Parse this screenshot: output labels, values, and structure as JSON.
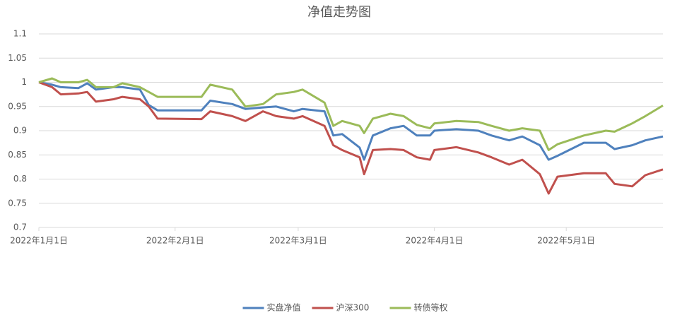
{
  "chart_data": {
    "type": "line",
    "title": "净值走势图",
    "x": [
      "2022-01-01",
      "2022-01-04",
      "2022-01-06",
      "2022-01-10",
      "2022-01-12",
      "2022-01-14",
      "2022-01-18",
      "2022-01-20",
      "2022-01-24",
      "2022-01-26",
      "2022-01-28",
      "2022-02-07",
      "2022-02-09",
      "2022-02-14",
      "2022-02-17",
      "2022-02-21",
      "2022-02-24",
      "2022-02-28",
      "2022-03-02",
      "2022-03-07",
      "2022-03-09",
      "2022-03-11",
      "2022-03-15",
      "2022-03-16",
      "2022-03-18",
      "2022-03-22",
      "2022-03-25",
      "2022-03-28",
      "2022-03-31",
      "2022-04-01",
      "2022-04-06",
      "2022-04-11",
      "2022-04-14",
      "2022-04-18",
      "2022-04-21",
      "2022-04-25",
      "2022-04-27",
      "2022-04-29",
      "2022-05-05",
      "2022-05-10",
      "2022-05-12",
      "2022-05-16",
      "2022-05-19",
      "2022-05-23"
    ],
    "series": [
      {
        "name": "实盘净值",
        "color": "#4f81bd",
        "values": [
          1,
          0.995,
          0.99,
          0.988,
          0.998,
          0.985,
          0.99,
          0.99,
          0.985,
          0.953,
          0.942,
          0.942,
          0.962,
          0.955,
          0.945,
          0.948,
          0.95,
          0.94,
          0.945,
          0.94,
          0.89,
          0.893,
          0.865,
          0.84,
          0.89,
          0.905,
          0.91,
          0.89,
          0.89,
          0.9,
          0.903,
          0.9,
          0.89,
          0.88,
          0.888,
          0.87,
          0.84,
          0.848,
          0.875,
          0.875,
          0.862,
          0.87,
          0.88,
          0.888
        ]
      },
      {
        "name": "沪深300",
        "color": "#c0504d",
        "values": [
          1,
          0.99,
          0.975,
          0.977,
          0.98,
          0.96,
          0.965,
          0.97,
          0.965,
          0.95,
          0.925,
          0.924,
          0.94,
          0.93,
          0.92,
          0.94,
          0.93,
          0.925,
          0.93,
          0.91,
          0.87,
          0.86,
          0.845,
          0.81,
          0.86,
          0.862,
          0.86,
          0.845,
          0.84,
          0.86,
          0.866,
          0.855,
          0.845,
          0.83,
          0.84,
          0.81,
          0.77,
          0.805,
          0.812,
          0.812,
          0.79,
          0.785,
          0.808,
          0.82
        ]
      },
      {
        "name": "转债等权",
        "color": "#9bbb59",
        "values": [
          1,
          1.008,
          1.0,
          1.0,
          1.005,
          0.99,
          0.99,
          0.998,
          0.99,
          0.98,
          0.97,
          0.97,
          0.995,
          0.985,
          0.95,
          0.955,
          0.975,
          0.98,
          0.985,
          0.958,
          0.91,
          0.92,
          0.91,
          0.895,
          0.925,
          0.935,
          0.93,
          0.912,
          0.905,
          0.915,
          0.92,
          0.918,
          0.91,
          0.9,
          0.905,
          0.9,
          0.86,
          0.872,
          0.89,
          0.9,
          0.898,
          0.915,
          0.93,
          0.952
        ]
      }
    ],
    "xlim": [
      "2022-01-01",
      "2022-05-23"
    ],
    "xticks": [
      {
        "value": "2022-01-01",
        "label": "2022年1月1日"
      },
      {
        "value": "2022-02-01",
        "label": "2022年2月1日"
      },
      {
        "value": "2022-03-01",
        "label": "2022年3月1日"
      },
      {
        "value": "2022-04-01",
        "label": "2022年4月1日"
      },
      {
        "value": "2022-05-01",
        "label": "2022年5月1日"
      }
    ],
    "ylim": [
      0.7,
      1.1
    ],
    "yticks": [
      0.7,
      0.75,
      0.8,
      0.85,
      0.9,
      0.95,
      1,
      1.05,
      1.1
    ],
    "grid": true,
    "legend": "bottom"
  }
}
